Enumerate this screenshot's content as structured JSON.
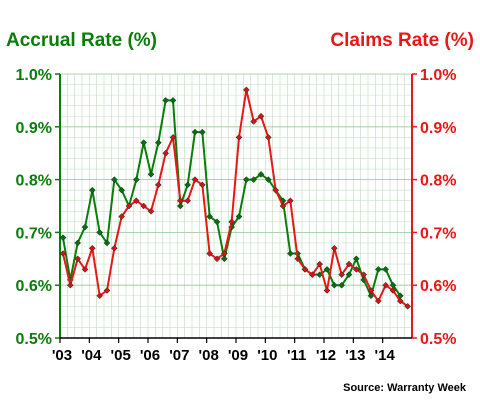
{
  "chart_data": {
    "type": "line",
    "left_axis_title": "Accrual Rate (%)",
    "right_axis_title": "Claims Rate (%)",
    "source": "Source: Warranty Week",
    "x_tick_labels": [
      "'03",
      "'04",
      "'05",
      "'06",
      "'07",
      "'08",
      "'09",
      "'10",
      "'11",
      "'12",
      "'13",
      "'14"
    ],
    "y_left_ticks": [
      "0.5%",
      "0.6%",
      "0.7%",
      "0.8%",
      "0.9%",
      "1.0%"
    ],
    "y_right_ticks": [
      "0.5%",
      "0.6%",
      "0.7%",
      "0.8%",
      "0.9%",
      "1.0%"
    ],
    "ylim": [
      0.5,
      1.0
    ],
    "grid": true,
    "colors": {
      "accrual": "#0a7d0a",
      "claims": "#e81818",
      "accrual_marker": "#0a6e0a",
      "claims_marker": "#d41414"
    },
    "series": [
      {
        "key": "accrual",
        "axis": "left",
        "values": [
          0.69,
          0.61,
          0.68,
          0.71,
          0.78,
          0.7,
          0.68,
          0.8,
          0.78,
          0.75,
          0.8,
          0.87,
          0.81,
          0.87,
          0.95,
          0.95,
          0.75,
          0.79,
          0.89,
          0.89,
          0.73,
          0.72,
          0.65,
          0.71,
          0.73,
          0.8,
          0.8,
          0.81,
          0.8,
          0.78,
          0.76,
          0.66,
          0.66,
          0.63,
          0.62,
          0.62,
          0.63,
          0.6,
          0.6,
          0.62,
          0.65,
          0.61,
          0.58,
          0.63,
          0.63,
          0.6,
          0.58
        ]
      },
      {
        "key": "claims",
        "axis": "right",
        "values": [
          0.66,
          0.6,
          0.65,
          0.63,
          0.67,
          0.58,
          0.59,
          0.67,
          0.73,
          0.75,
          0.76,
          0.75,
          0.74,
          0.79,
          0.85,
          0.88,
          0.76,
          0.76,
          0.8,
          0.79,
          0.66,
          0.65,
          0.66,
          0.72,
          0.88,
          0.97,
          0.91,
          0.92,
          0.88,
          0.78,
          0.75,
          0.76,
          0.65,
          0.63,
          0.62,
          0.64,
          0.59,
          0.67,
          0.62,
          0.64,
          0.63,
          0.62,
          0.59,
          0.57,
          0.6,
          0.59,
          0.57,
          0.56
        ]
      }
    ]
  }
}
